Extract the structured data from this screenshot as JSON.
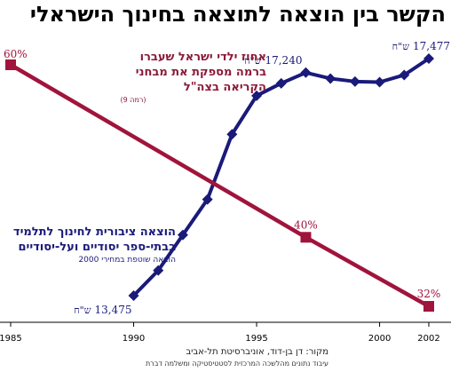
{
  "title": "הקשר בין הוצאה לתוצאה בחינוך הישראלי",
  "red_note": {
    "line1": "אחוז ילדי ישראל שעברו",
    "line2": "ברמה מספקת את מבחני",
    "line3": "הקריאה בצה\"ל",
    "small": "(רמה 9)"
  },
  "blue_note": {
    "line1": "הוצאה ציבורית לחינוך לתלמיד",
    "line2": "בבתי-ספר יסודיים ועל-יסודיים",
    "small": "הוצאה שוטפת במחירי 2000"
  },
  "source": {
    "line1": "מקור: דן בן-דוד, אוניברסיטת תל-אביב",
    "line2": "עיבוד נתונים מהלשכה המרכזית לסטטיסטיקה ומשלמה דברת"
  },
  "chart_data": {
    "type": "line",
    "title": "הקשר בין הוצאה לתוצאה בחינוך הישראלי",
    "x_ticks": [
      "1985",
      "1990",
      "1995",
      "2000",
      "2002"
    ],
    "xlim": [
      1985,
      2002
    ],
    "colors": {
      "spending": "#1a1a7a",
      "reading": "#a0143c"
    },
    "series": [
      {
        "key": "spending",
        "unit": "ש\"ח",
        "x": [
          1990,
          1991,
          1992,
          1993,
          1994,
          1995,
          1996,
          1997,
          1998,
          1999,
          2000,
          2001,
          2002
        ],
        "values": [
          13475,
          13900,
          14500,
          15100,
          16200,
          16850,
          17060,
          17240,
          17140,
          17090,
          17080,
          17200,
          17477
        ],
        "ylim": [
          13475,
          17477
        ],
        "labels": [
          {
            "index": 0,
            "text": "13,475",
            "unit": "ש\"ח"
          },
          {
            "index": 7,
            "text": "17,240",
            "unit": "ש\"ח"
          },
          {
            "index": 12,
            "text": "17,477",
            "unit": "ש\"ח"
          }
        ]
      },
      {
        "key": "reading",
        "unit": "%",
        "x": [
          1985,
          1997,
          2002
        ],
        "values": [
          60,
          40,
          32
        ],
        "labels": [
          "60%",
          "40%",
          "32%"
        ]
      }
    ]
  }
}
